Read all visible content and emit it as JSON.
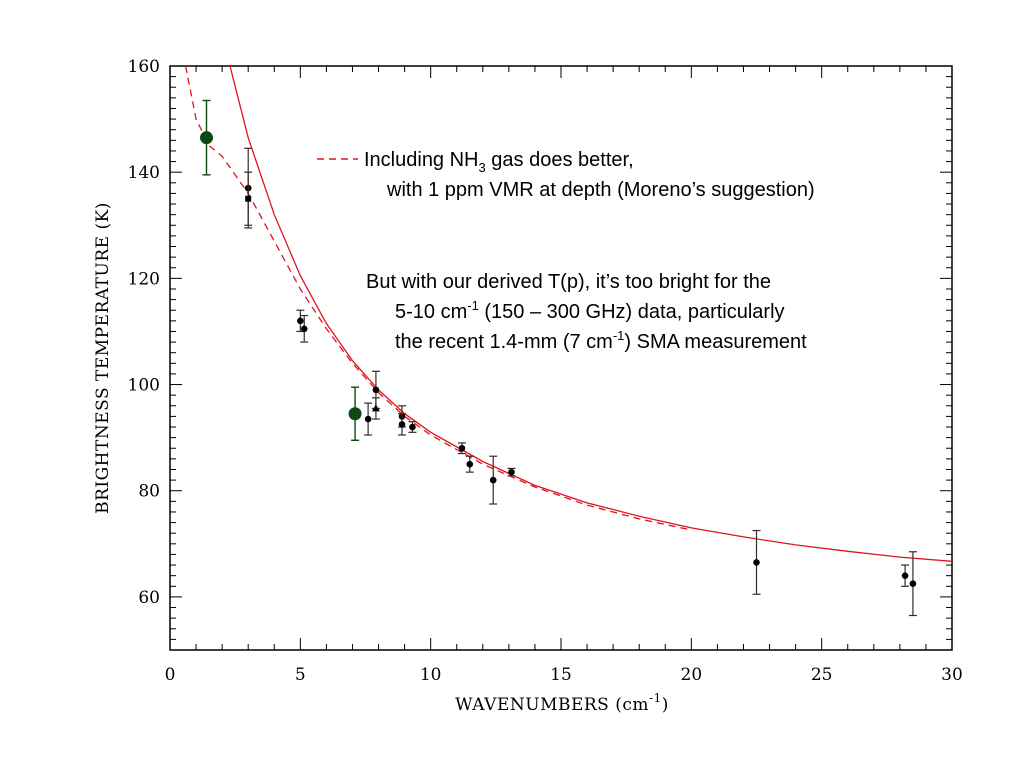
{
  "chart_data": {
    "type": "scatter",
    "xlabel": "WAVENUMBERS (cm",
    "xlabel_sup": "-1",
    "xlabel_close": ")",
    "ylabel": "BRIGHTNESS TEMPERATURE (K)",
    "xlim": [
      0,
      30
    ],
    "ylim": [
      50,
      160
    ],
    "xticks": [
      0,
      5,
      10,
      15,
      20,
      25,
      30
    ],
    "yticks": [
      60,
      80,
      100,
      120,
      140,
      160
    ],
    "grid": false,
    "colors": {
      "model": "#e0141e",
      "data": "#000000",
      "highlight": "#0d4a12",
      "errorbar": "#3b2a2a"
    },
    "series": [
      {
        "style": "solid-line",
        "x": [
          2.3,
          3,
          4,
          5,
          6,
          7,
          8,
          9,
          10,
          12,
          14,
          16,
          18,
          20,
          22,
          24,
          26,
          28,
          30
        ],
        "y": [
          160,
          146.5,
          132,
          120.5,
          111.5,
          104.5,
          99,
          94.5,
          91,
          85.5,
          81,
          77.7,
          75.2,
          73,
          71.3,
          69.8,
          68.6,
          67.5,
          66.7
        ]
      },
      {
        "style": "dashed-line",
        "x": [
          0.6,
          1,
          1.5,
          2,
          3,
          4,
          5,
          6,
          7,
          8,
          9,
          10,
          12,
          14,
          16,
          18,
          20
        ],
        "y": [
          160,
          150,
          145,
          143,
          136,
          127,
          118,
          110.5,
          104,
          98.5,
          94,
          90.5,
          85,
          80.7,
          77.3,
          74.7,
          72.6
        ]
      },
      {
        "style": "points-with-errorbars",
        "points": [
          {
            "x": 3.0,
            "y": 137,
            "err": 7.5,
            "marker": "circle"
          },
          {
            "x": 3.0,
            "y": 135,
            "err": 5,
            "marker": "square"
          },
          {
            "x": 5.0,
            "y": 112,
            "err": 2,
            "marker": "circle"
          },
          {
            "x": 5.15,
            "y": 110.5,
            "err": 2.5,
            "marker": "circle"
          },
          {
            "x": 7.6,
            "y": 93.5,
            "err": 3,
            "marker": "circle"
          },
          {
            "x": 7.9,
            "y": 99,
            "err": 3.5,
            "marker": "circle"
          },
          {
            "x": 7.9,
            "y": 95.5,
            "err": 2,
            "marker": "triangle"
          },
          {
            "x": 8.9,
            "y": 94,
            "err": 2,
            "marker": "circle"
          },
          {
            "x": 8.9,
            "y": 92.5,
            "err": 2,
            "marker": "circle"
          },
          {
            "x": 9.3,
            "y": 92,
            "err": 1,
            "marker": "circle"
          },
          {
            "x": 11.2,
            "y": 88,
            "err": 1,
            "marker": "circle"
          },
          {
            "x": 11.5,
            "y": 85,
            "err": 1.5,
            "marker": "circle"
          },
          {
            "x": 12.4,
            "y": 82,
            "err": 4.5,
            "marker": "circle"
          },
          {
            "x": 13.1,
            "y": 83.5,
            "err": 0.7,
            "marker": "circle"
          },
          {
            "x": 22.5,
            "y": 66.5,
            "err": 6,
            "marker": "circle"
          },
          {
            "x": 28.2,
            "y": 64,
            "err": 2,
            "marker": "circle"
          },
          {
            "x": 28.5,
            "y": 62.5,
            "err": 6,
            "marker": "circle"
          }
        ]
      },
      {
        "style": "highlight-points",
        "points": [
          {
            "x": 1.4,
            "y": 146.5,
            "err": 7
          },
          {
            "x": 7.1,
            "y": 94.5,
            "err": 5
          }
        ]
      }
    ],
    "annotations": {
      "legend_line1_a": "Including NH",
      "legend_line1_sub": "3",
      "legend_line1_b": " gas does better,",
      "legend_line2": "with 1 ppm VMR at depth (Moreno’s suggestion)",
      "note_line1": "But with our derived T(p), it’s too bright for the",
      "note_line2_a": "5-10 cm",
      "note_line2_sup": "-1",
      "note_line2_b": " (150 – 300 GHz) data, particularly",
      "note_line3_a": "the recent 1.4-mm (7 cm",
      "note_line3_sup": "-1",
      "note_line3_b": ") SMA measurement"
    }
  }
}
